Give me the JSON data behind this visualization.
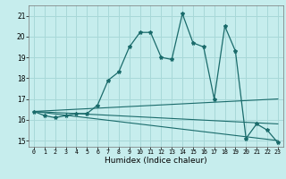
{
  "xlabel": "Humidex (Indice chaleur)",
  "bg_color": "#c6eded",
  "grid_color": "#a8d8d8",
  "line_color": "#1a6b6b",
  "xlim": [
    -0.5,
    23.5
  ],
  "ylim": [
    14.7,
    21.5
  ],
  "yticks": [
    15,
    16,
    17,
    18,
    19,
    20,
    21
  ],
  "xticks": [
    0,
    1,
    2,
    3,
    4,
    5,
    6,
    7,
    8,
    9,
    10,
    11,
    12,
    13,
    14,
    15,
    16,
    17,
    18,
    19,
    20,
    21,
    22,
    23
  ],
  "series1_x": [
    0,
    1,
    2,
    3,
    4,
    5,
    6,
    7,
    8,
    9,
    10,
    11,
    12,
    13,
    14,
    15,
    16,
    17,
    18,
    19,
    20,
    21,
    22,
    23
  ],
  "series1_y": [
    16.4,
    16.2,
    16.1,
    16.2,
    16.3,
    16.3,
    16.7,
    17.9,
    18.3,
    19.5,
    20.2,
    20.2,
    19.0,
    18.9,
    21.1,
    19.7,
    19.5,
    17.0,
    20.5,
    19.3,
    15.1,
    15.8,
    15.5,
    14.9
  ],
  "series2_x": [
    0,
    23
  ],
  "series2_y": [
    16.4,
    17.0
  ],
  "series3_x": [
    0,
    23
  ],
  "series3_y": [
    16.4,
    15.8
  ],
  "series4_x": [
    0,
    23
  ],
  "series4_y": [
    16.4,
    15.0
  ]
}
